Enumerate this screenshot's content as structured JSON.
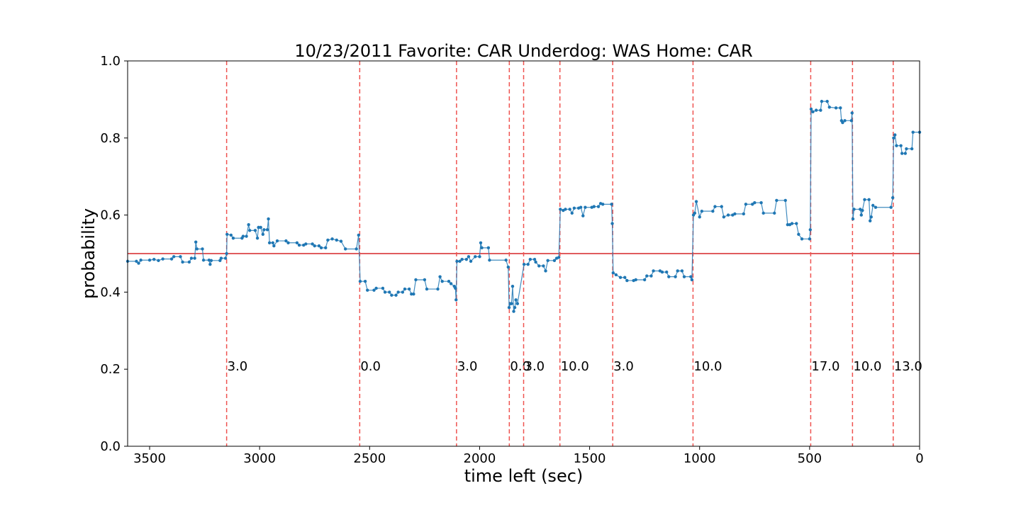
{
  "chart_data": {
    "type": "line",
    "title": "10/23/2011 Favorite: CAR Underdog: WAS Home: CAR",
    "xlabel": "time left (sec)",
    "ylabel": "probability",
    "xlim": [
      3600,
      0
    ],
    "ylim": [
      0.0,
      1.0
    ],
    "x_ticks": [
      3500,
      3000,
      2500,
      2000,
      1500,
      1000,
      500,
      0
    ],
    "y_ticks": [
      0.0,
      0.2,
      0.4,
      0.6,
      0.8,
      1.0
    ],
    "x_tick_labels": [
      "3500",
      "3000",
      "2500",
      "2000",
      "1500",
      "1000",
      "500",
      "0"
    ],
    "y_tick_labels": [
      "0.0",
      "0.2",
      "0.4",
      "0.6",
      "0.8",
      "1.0"
    ],
    "grid": false,
    "colors": {
      "series": "#1f77b4",
      "reference": "#d62728",
      "score_lines": "#ef5350"
    },
    "reference_line": {
      "y": 0.5
    },
    "score_events": [
      {
        "x": 3150,
        "label": "3.0"
      },
      {
        "x": 2545,
        "label": "0.0"
      },
      {
        "x": 2105,
        "label": "3.0"
      },
      {
        "x": 1865,
        "label": "0.0"
      },
      {
        "x": 1800,
        "label": "3.0"
      },
      {
        "x": 1635,
        "label": "10.0"
      },
      {
        "x": 1395,
        "label": "3.0"
      },
      {
        "x": 1030,
        "label": "10.0"
      },
      {
        "x": 495,
        "label": "17.0"
      },
      {
        "x": 305,
        "label": "10.0"
      },
      {
        "x": 120,
        "label": "13.0"
      }
    ],
    "series": [
      {
        "values": [
          [
            3600,
            0.48
          ],
          [
            3560,
            0.48
          ],
          [
            3550,
            0.475
          ],
          [
            3540,
            0.483
          ],
          [
            3500,
            0.483
          ],
          [
            3480,
            0.485
          ],
          [
            3460,
            0.482
          ],
          [
            3440,
            0.486
          ],
          [
            3400,
            0.486
          ],
          [
            3390,
            0.492
          ],
          [
            3360,
            0.492
          ],
          [
            3350,
            0.478
          ],
          [
            3320,
            0.478
          ],
          [
            3310,
            0.488
          ],
          [
            3295,
            0.488
          ],
          [
            3290,
            0.53
          ],
          [
            3285,
            0.512
          ],
          [
            3260,
            0.512
          ],
          [
            3255,
            0.483
          ],
          [
            3230,
            0.483
          ],
          [
            3225,
            0.472
          ],
          [
            3220,
            0.482
          ],
          [
            3180,
            0.482
          ],
          [
            3175,
            0.488
          ],
          [
            3155,
            0.488
          ],
          [
            3150,
            0.5
          ],
          [
            3148,
            0.55
          ],
          [
            3130,
            0.548
          ],
          [
            3120,
            0.54
          ],
          [
            3080,
            0.54
          ],
          [
            3075,
            0.545
          ],
          [
            3060,
            0.545
          ],
          [
            3050,
            0.575
          ],
          [
            3045,
            0.56
          ],
          [
            3020,
            0.56
          ],
          [
            3010,
            0.54
          ],
          [
            3005,
            0.568
          ],
          [
            2995,
            0.568
          ],
          [
            2985,
            0.55
          ],
          [
            2980,
            0.562
          ],
          [
            2965,
            0.562
          ],
          [
            2960,
            0.59
          ],
          [
            2955,
            0.528
          ],
          [
            2940,
            0.528
          ],
          [
            2935,
            0.52
          ],
          [
            2920,
            0.533
          ],
          [
            2880,
            0.533
          ],
          [
            2870,
            0.528
          ],
          [
            2830,
            0.528
          ],
          [
            2820,
            0.522
          ],
          [
            2800,
            0.522
          ],
          [
            2790,
            0.525
          ],
          [
            2760,
            0.525
          ],
          [
            2750,
            0.52
          ],
          [
            2730,
            0.52
          ],
          [
            2720,
            0.515
          ],
          [
            2700,
            0.515
          ],
          [
            2690,
            0.535
          ],
          [
            2670,
            0.538
          ],
          [
            2650,
            0.535
          ],
          [
            2630,
            0.532
          ],
          [
            2610,
            0.512
          ],
          [
            2560,
            0.512
          ],
          [
            2550,
            0.548
          ],
          [
            2543,
            0.428
          ],
          [
            2520,
            0.428
          ],
          [
            2510,
            0.405
          ],
          [
            2480,
            0.405
          ],
          [
            2470,
            0.41
          ],
          [
            2440,
            0.41
          ],
          [
            2430,
            0.4
          ],
          [
            2410,
            0.4
          ],
          [
            2400,
            0.392
          ],
          [
            2380,
            0.392
          ],
          [
            2370,
            0.4
          ],
          [
            2350,
            0.4
          ],
          [
            2340,
            0.408
          ],
          [
            2320,
            0.408
          ],
          [
            2310,
            0.395
          ],
          [
            2300,
            0.395
          ],
          [
            2290,
            0.432
          ],
          [
            2250,
            0.432
          ],
          [
            2240,
            0.408
          ],
          [
            2190,
            0.408
          ],
          [
            2180,
            0.44
          ],
          [
            2170,
            0.428
          ],
          [
            2140,
            0.428
          ],
          [
            2130,
            0.422
          ],
          [
            2115,
            0.415
          ],
          [
            2110,
            0.41
          ],
          [
            2107,
            0.38
          ],
          [
            2103,
            0.48
          ],
          [
            2090,
            0.48
          ],
          [
            2080,
            0.485
          ],
          [
            2060,
            0.485
          ],
          [
            2050,
            0.492
          ],
          [
            2040,
            0.48
          ],
          [
            2020,
            0.492
          ],
          [
            2000,
            0.492
          ],
          [
            1995,
            0.528
          ],
          [
            1990,
            0.515
          ],
          [
            1960,
            0.515
          ],
          [
            1955,
            0.483
          ],
          [
            1880,
            0.483
          ],
          [
            1870,
            0.465
          ],
          [
            1866,
            0.36
          ],
          [
            1860,
            0.37
          ],
          [
            1855,
            0.37
          ],
          [
            1850,
            0.415
          ],
          [
            1845,
            0.35
          ],
          [
            1840,
            0.36
          ],
          [
            1835,
            0.38
          ],
          [
            1828,
            0.37
          ],
          [
            1798,
            0.472
          ],
          [
            1780,
            0.472
          ],
          [
            1770,
            0.485
          ],
          [
            1750,
            0.485
          ],
          [
            1745,
            0.478
          ],
          [
            1730,
            0.468
          ],
          [
            1710,
            0.468
          ],
          [
            1700,
            0.455
          ],
          [
            1690,
            0.482
          ],
          [
            1660,
            0.482
          ],
          [
            1650,
            0.488
          ],
          [
            1640,
            0.49
          ],
          [
            1633,
            0.615
          ],
          [
            1620,
            0.612
          ],
          [
            1610,
            0.615
          ],
          [
            1590,
            0.615
          ],
          [
            1580,
            0.605
          ],
          [
            1570,
            0.618
          ],
          [
            1550,
            0.618
          ],
          [
            1540,
            0.62
          ],
          [
            1530,
            0.598
          ],
          [
            1520,
            0.62
          ],
          [
            1490,
            0.62
          ],
          [
            1480,
            0.622
          ],
          [
            1460,
            0.622
          ],
          [
            1450,
            0.63
          ],
          [
            1440,
            0.628
          ],
          [
            1400,
            0.628
          ],
          [
            1397,
            0.578
          ],
          [
            1393,
            0.45
          ],
          [
            1380,
            0.445
          ],
          [
            1360,
            0.438
          ],
          [
            1340,
            0.438
          ],
          [
            1330,
            0.43
          ],
          [
            1300,
            0.43
          ],
          [
            1290,
            0.432
          ],
          [
            1250,
            0.432
          ],
          [
            1240,
            0.442
          ],
          [
            1220,
            0.442
          ],
          [
            1210,
            0.455
          ],
          [
            1180,
            0.455
          ],
          [
            1170,
            0.452
          ],
          [
            1150,
            0.452
          ],
          [
            1140,
            0.44
          ],
          [
            1110,
            0.44
          ],
          [
            1100,
            0.455
          ],
          [
            1080,
            0.455
          ],
          [
            1070,
            0.44
          ],
          [
            1040,
            0.44
          ],
          [
            1035,
            0.432
          ],
          [
            1028,
            0.6
          ],
          [
            1022,
            0.605
          ],
          [
            1015,
            0.635
          ],
          [
            1000,
            0.595
          ],
          [
            990,
            0.61
          ],
          [
            940,
            0.61
          ],
          [
            930,
            0.622
          ],
          [
            900,
            0.622
          ],
          [
            890,
            0.595
          ],
          [
            870,
            0.6
          ],
          [
            850,
            0.6
          ],
          [
            840,
            0.603
          ],
          [
            800,
            0.603
          ],
          [
            790,
            0.628
          ],
          [
            760,
            0.628
          ],
          [
            750,
            0.632
          ],
          [
            720,
            0.632
          ],
          [
            710,
            0.605
          ],
          [
            660,
            0.605
          ],
          [
            650,
            0.638
          ],
          [
            610,
            0.638
          ],
          [
            600,
            0.575
          ],
          [
            590,
            0.575
          ],
          [
            580,
            0.578
          ],
          [
            560,
            0.578
          ],
          [
            550,
            0.55
          ],
          [
            535,
            0.538
          ],
          [
            500,
            0.538
          ],
          [
            497,
            0.562
          ],
          [
            493,
            0.875
          ],
          [
            485,
            0.868
          ],
          [
            470,
            0.872
          ],
          [
            450,
            0.872
          ],
          [
            445,
            0.895
          ],
          [
            420,
            0.895
          ],
          [
            410,
            0.88
          ],
          [
            380,
            0.878
          ],
          [
            360,
            0.878
          ],
          [
            355,
            0.845
          ],
          [
            350,
            0.84
          ],
          [
            340,
            0.845
          ],
          [
            310,
            0.845
          ],
          [
            307,
            0.865
          ],
          [
            303,
            0.59
          ],
          [
            298,
            0.615
          ],
          [
            270,
            0.615
          ],
          [
            265,
            0.6
          ],
          [
            260,
            0.612
          ],
          [
            250,
            0.64
          ],
          [
            230,
            0.64
          ],
          [
            225,
            0.585
          ],
          [
            220,
            0.595
          ],
          [
            212,
            0.625
          ],
          [
            200,
            0.62
          ],
          [
            130,
            0.62
          ],
          [
            122,
            0.645
          ],
          [
            118,
            0.8
          ],
          [
            112,
            0.808
          ],
          [
            105,
            0.78
          ],
          [
            85,
            0.78
          ],
          [
            80,
            0.76
          ],
          [
            65,
            0.76
          ],
          [
            60,
            0.772
          ],
          [
            35,
            0.772
          ],
          [
            30,
            0.815
          ],
          [
            0,
            0.815
          ]
        ]
      }
    ]
  }
}
